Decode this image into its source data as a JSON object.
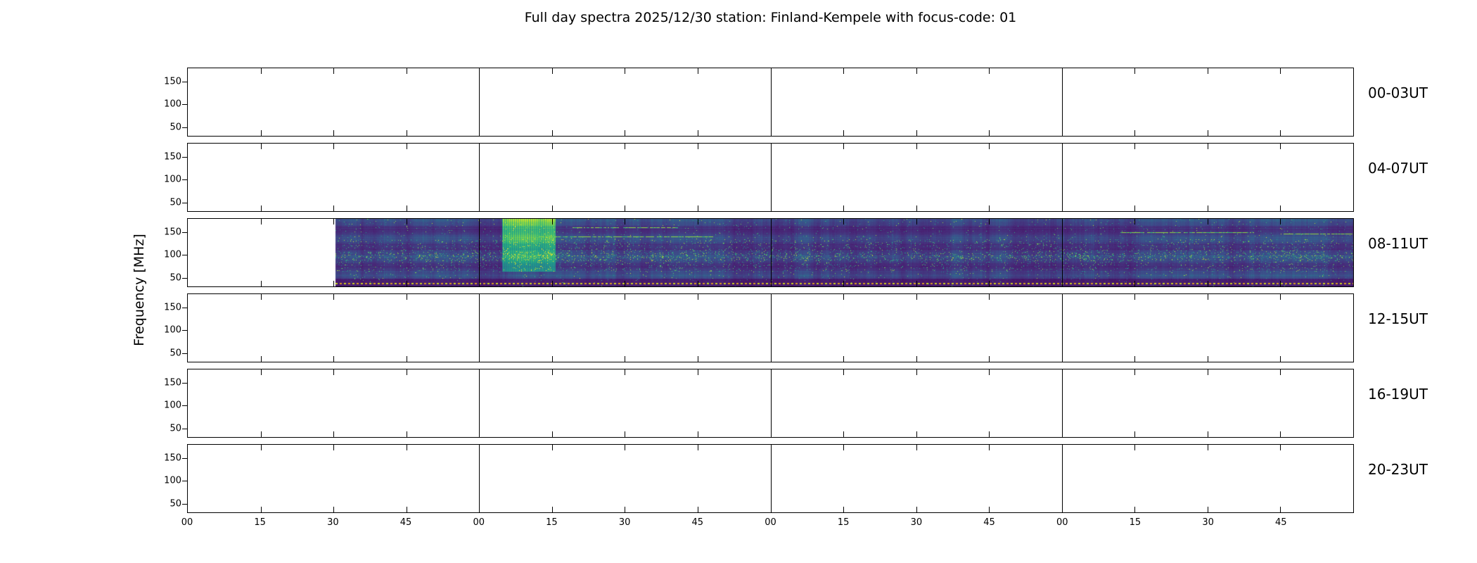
{
  "title": "Full day spectra 2025/12/30 station: Finland-Kempele with focus-code: 01",
  "axes": {
    "ylabel": "Frequency [MHz]",
    "ytick_labels": [
      "150",
      "100",
      "50"
    ],
    "xtick_labels": [
      "00",
      "15",
      "30",
      "45",
      "00",
      "15",
      "30",
      "45",
      "00",
      "15",
      "30",
      "45",
      "00",
      "15",
      "30",
      "45"
    ]
  },
  "panels": [
    {
      "label": "00-03UT"
    },
    {
      "label": "04-07UT"
    },
    {
      "label": "08-11UT"
    },
    {
      "label": "12-15UT"
    },
    {
      "label": "16-19UT"
    },
    {
      "label": "20-23UT"
    }
  ],
  "chart_data": {
    "type": "heatmap",
    "title": "Full day spectra 2025/12/30 station: Finland-Kempele with focus-code: 01",
    "date": "2025/12/30",
    "station": "Finland-Kempele",
    "focus_code": "01",
    "ylabel": "Frequency [MHz]",
    "yticks": [
      50,
      100,
      150
    ],
    "ylim": [
      45,
      175
    ],
    "hours_per_panel": 4,
    "xtick_minutes": [
      "00",
      "15",
      "30",
      "45"
    ],
    "colormap": "viridis",
    "panels": [
      {
        "label": "00-03UT",
        "utc_range": "00:00-04:00",
        "has_data": false
      },
      {
        "label": "04-07UT",
        "utc_range": "04:00-08:00",
        "has_data": false
      },
      {
        "label": "08-11UT",
        "utc_range": "08:00-12:00",
        "has_data": true,
        "data_start_utc": "08:30",
        "data_end_utc": "12:00"
      },
      {
        "label": "12-15UT",
        "utc_range": "12:00-16:00",
        "has_data": false
      },
      {
        "label": "16-19UT",
        "utc_range": "16:00-20:00",
        "has_data": false
      },
      {
        "label": "20-23UT",
        "utc_range": "20:00-24:00",
        "has_data": false
      }
    ],
    "spectrogram": {
      "description": "Dark purple viridis background with speckled green interference; bright teal vertical band near 09:05-09:15 UT; narrow bright green horizontal lines near 150 MHz late in the interval; dark band below ~55 MHz with yellow dotted marker line along the bottom.",
      "start_fraction": 0.127,
      "bright_band_fraction": [
        0.27,
        0.315
      ],
      "interference_lines": [
        {
          "y_frac": 0.2,
          "x_from": 0.8,
          "x_to": 0.915
        },
        {
          "y_frac": 0.22,
          "x_from": 0.94,
          "x_to": 0.999
        },
        {
          "y_frac": 0.26,
          "x_from": 0.3,
          "x_to": 0.45
        },
        {
          "y_frac": 0.13,
          "x_from": 0.33,
          "x_to": 0.42
        }
      ],
      "dotted_line": {
        "y_frac": 0.955,
        "color": "#c9d11c",
        "alt_color": "#d99a20"
      }
    }
  }
}
